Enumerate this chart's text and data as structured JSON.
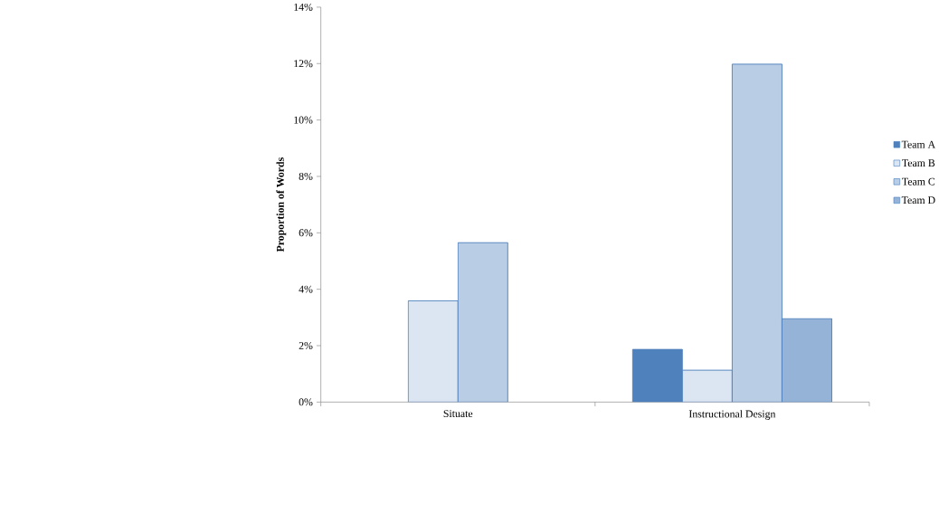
{
  "chart_data": {
    "type": "bar",
    "ylabel": "Proportion of Words",
    "categories": [
      "Situate",
      "Instructional Design"
    ],
    "series": [
      {
        "name": "Team A",
        "color": "#4f81bd",
        "values": [
          null,
          1.87
        ]
      },
      {
        "name": "Team B",
        "color": "#dce6f2",
        "values": [
          3.59,
          1.13
        ]
      },
      {
        "name": "Team C",
        "color": "#b9cde5",
        "values": [
          5.65,
          11.98
        ]
      },
      {
        "name": "Team D",
        "color": "#95b3d7",
        "values": [
          null,
          2.96
        ]
      }
    ],
    "ylim": [
      0,
      14
    ],
    "yticks": [
      {
        "value": 0,
        "label": "0%"
      },
      {
        "value": 2,
        "label": "2%"
      },
      {
        "value": 4,
        "label": "4%"
      },
      {
        "value": 6,
        "label": "6%"
      },
      {
        "value": 8,
        "label": "8%"
      },
      {
        "value": 10,
        "label": "10%"
      },
      {
        "value": 12,
        "label": "12%"
      },
      {
        "value": 14,
        "label": "14%"
      }
    ],
    "grid": false,
    "legend": "right"
  }
}
